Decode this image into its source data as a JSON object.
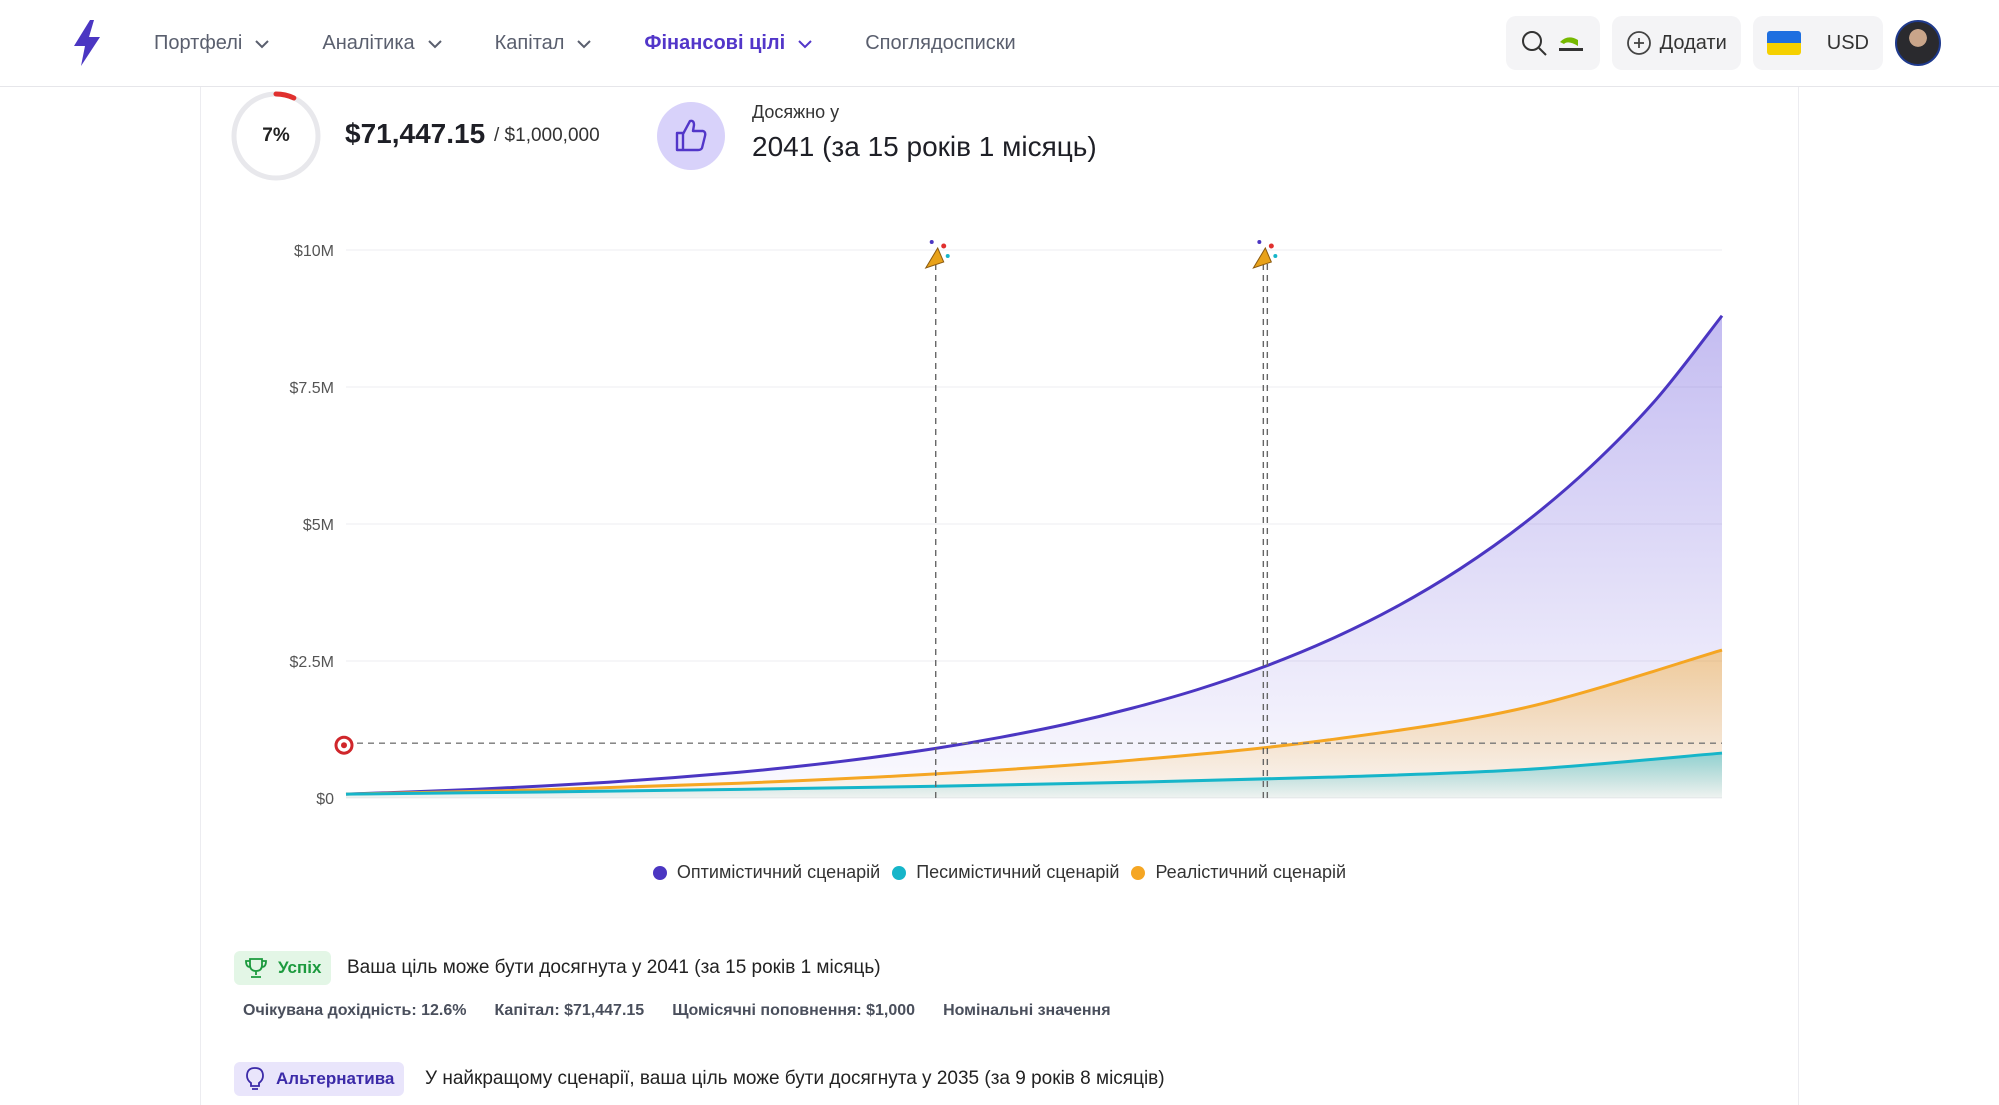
{
  "nav": {
    "items": [
      {
        "label": "Портфелі",
        "dropdown": true,
        "active": false
      },
      {
        "label": "Аналітика",
        "dropdown": true,
        "active": false
      },
      {
        "label": "Капітал",
        "dropdown": true,
        "active": false
      },
      {
        "label": "Фінансові цілі",
        "dropdown": true,
        "active": true
      },
      {
        "label": "Споглядосписки",
        "dropdown": false,
        "active": false
      }
    ],
    "add_label": "Додати",
    "currency": "USD",
    "accent_color": "#5236c9"
  },
  "goal": {
    "progress_percent": 7,
    "progress_label": "7%",
    "current_amount": "$71,447.15",
    "target_amount": "/ $1,000,000",
    "reached_label": "Досяжно у",
    "reached_value": "2041 (за 15 років 1 місяць)"
  },
  "chart_data": {
    "type": "area",
    "x_range": [
      0,
      21
    ],
    "ylim": [
      0,
      10000000
    ],
    "y_ticks": [
      {
        "value": 0,
        "label": "$0"
      },
      {
        "value": 2500000,
        "label": "$2.5M"
      },
      {
        "value": 5000000,
        "label": "$5M"
      },
      {
        "value": 7500000,
        "label": "$7.5M"
      },
      {
        "value": 10000000,
        "label": "$10M"
      }
    ],
    "goal_line": 1000000,
    "grid": true,
    "legend_position": "bottom",
    "milestones": [
      {
        "x": 9,
        "label": "Оптимістичний сценарій"
      },
      {
        "x": 14,
        "label": "Реалістичний сценарій"
      }
    ],
    "series": [
      {
        "name": "Оптимістичний сценарій",
        "color": "#4b36c2",
        "x": [
          0,
          1,
          2,
          3,
          4,
          5,
          6,
          7,
          8,
          9,
          10,
          11,
          12,
          13,
          14,
          15,
          16,
          17,
          18,
          19,
          20,
          21
        ],
        "values": [
          71000,
          112000,
          160000,
          218000,
          288000,
          372000,
          470000,
          590000,
          735000,
          905000,
          1110000,
          1350000,
          1640000,
          1980000,
          2390000,
          2880000,
          3470000,
          4180000,
          5030000,
          6050000,
          7280000,
          8800000
        ]
      },
      {
        "name": "Песимістичний сценарій",
        "color": "#16b5c9",
        "x": [
          0,
          3,
          6,
          9,
          12,
          15,
          18,
          21
        ],
        "values": [
          71000,
          110000,
          158000,
          215000,
          287000,
          380000,
          520000,
          820000
        ]
      },
      {
        "name": "Реалістичний сценарій",
        "color": "#f5a623",
        "x": [
          0,
          3,
          6,
          9,
          12,
          15,
          18,
          21
        ],
        "values": [
          71000,
          150000,
          270000,
          440000,
          690000,
          1060000,
          1650000,
          2700000
        ]
      }
    ]
  },
  "messages": {
    "success_badge": "Успіх",
    "success_text": "Ваша ціль може бути досягнута у 2041 (за 15 років 1 місяць)",
    "stats": [
      "Очікувана дохідність: 12.6%",
      "Капітал: $71,447.15",
      "Щомісячні поповнення: $1,000",
      "Номінальні значення"
    ],
    "alt_badge": "Альтернатива",
    "alt_text": "У найкращому сценарії, ваша ціль може бути досягнута у 2035 (за 9 років 8 місяців)"
  }
}
